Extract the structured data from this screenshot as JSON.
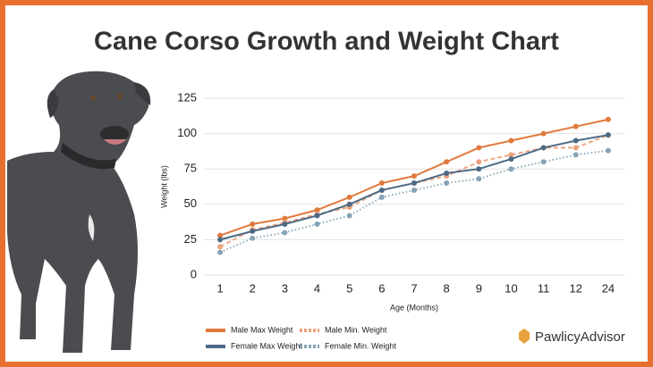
{
  "brand": "PawlicyAdvisor",
  "chart_data": {
    "type": "line",
    "title": "Cane Corso Growth and Weight Chart",
    "x_label": "Age (Months)",
    "y_label": "Weight (lbs)",
    "categories": [
      "1",
      "2",
      "3",
      "4",
      "5",
      "6",
      "7",
      "8",
      "9",
      "10",
      "11",
      "12",
      "24"
    ],
    "series": [
      {
        "name": "Male Max Weight",
        "color": "#e07a3d",
        "line_style": "solid",
        "values": [
          28,
          36,
          40,
          46,
          55,
          65,
          70,
          80,
          90,
          95,
          100,
          105,
          110
        ]
      },
      {
        "name": "Male Min. Weight",
        "color": "#eda07c",
        "line_style": "dashed",
        "values": [
          20,
          32,
          37,
          43,
          48,
          60,
          65,
          70,
          80,
          85,
          90,
          90,
          99
        ]
      },
      {
        "name": "Female Max Weight",
        "color": "#4c6a85",
        "line_style": "solid",
        "values": [
          25,
          31,
          36,
          42,
          50,
          60,
          65,
          72,
          75,
          82,
          90,
          95,
          99
        ]
      },
      {
        "name": "Female Min. Weight",
        "color": "#86a3b6",
        "line_style": "dotted",
        "values": [
          16,
          26,
          30,
          36,
          42,
          55,
          60,
          65,
          68,
          75,
          80,
          85,
          88
        ]
      }
    ],
    "ylim": [
      0,
      125
    ],
    "yticks": [
      0,
      25,
      50,
      75,
      100,
      125
    ],
    "grid": true
  }
}
